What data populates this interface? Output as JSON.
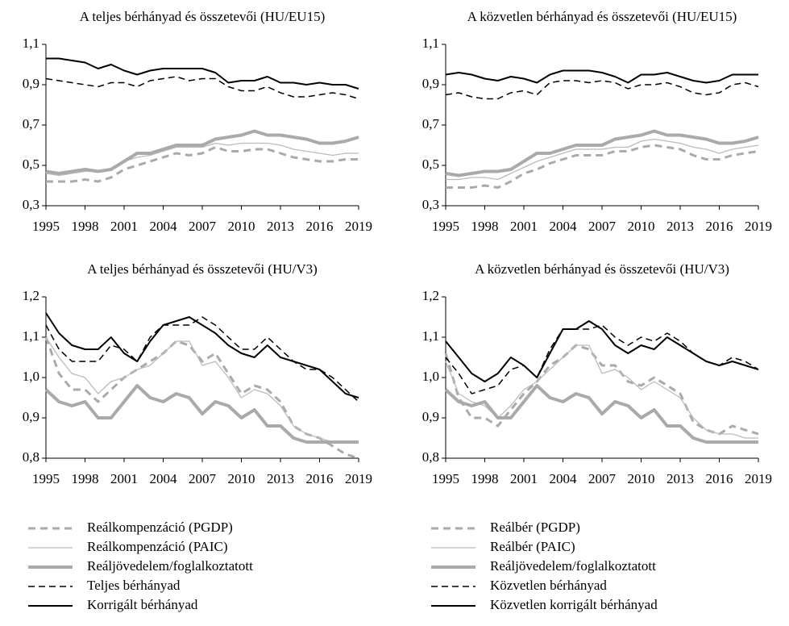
{
  "chart_data": [
    {
      "type": "line",
      "title": "A teljes bérhányad és összetevői (HU/EU15)",
      "x": [
        1995,
        1996,
        1997,
        1998,
        1999,
        2000,
        2001,
        2002,
        2003,
        2004,
        2005,
        2006,
        2007,
        2008,
        2009,
        2010,
        2011,
        2012,
        2013,
        2014,
        2015,
        2016,
        2017,
        2018,
        2019
      ],
      "xlim": [
        1995,
        2019
      ],
      "xticks": [
        1995,
        1998,
        2001,
        2004,
        2007,
        2010,
        2013,
        2016,
        2019
      ],
      "ylim": [
        0.3,
        1.1
      ],
      "yticks": [
        {
          "value": 0.3,
          "label": "0,3"
        },
        {
          "value": 0.5,
          "label": "0,5"
        },
        {
          "value": 0.7,
          "label": "0,7"
        },
        {
          "value": 0.9,
          "label": "0,9"
        },
        {
          "value": 1.1,
          "label": "1,1"
        }
      ],
      "series": [
        {
          "name": "Reálkompenzáció (PGDP)",
          "color": "#aaaaaa",
          "width": 3,
          "dash": "9 6",
          "values": [
            0.42,
            0.42,
            0.42,
            0.43,
            0.42,
            0.44,
            0.48,
            0.5,
            0.52,
            0.54,
            0.56,
            0.55,
            0.56,
            0.59,
            0.57,
            0.57,
            0.58,
            0.58,
            0.56,
            0.54,
            0.53,
            0.52,
            0.52,
            0.53,
            0.53
          ]
        },
        {
          "name": "Reálkompenzáció (PAIC)",
          "color": "#bbbbbb",
          "width": 1.3,
          "dash": "none",
          "values": [
            0.46,
            0.45,
            0.46,
            0.47,
            0.47,
            0.48,
            0.52,
            0.54,
            0.55,
            0.57,
            0.59,
            0.59,
            0.59,
            0.61,
            0.6,
            0.61,
            0.61,
            0.61,
            0.6,
            0.58,
            0.57,
            0.56,
            0.55,
            0.56,
            0.56
          ]
        },
        {
          "name": "Reáljövedelem/foglalkoztatott",
          "color": "#aaaaaa",
          "width": 4,
          "dash": "none",
          "values": [
            0.47,
            0.46,
            0.47,
            0.48,
            0.47,
            0.48,
            0.52,
            0.56,
            0.56,
            0.58,
            0.6,
            0.6,
            0.6,
            0.63,
            0.64,
            0.65,
            0.67,
            0.65,
            0.65,
            0.64,
            0.63,
            0.61,
            0.61,
            0.62,
            0.64
          ]
        },
        {
          "name": "Teljes bérhányad",
          "color": "#000000",
          "width": 1.5,
          "dash": "8 5",
          "values": [
            0.93,
            0.92,
            0.91,
            0.9,
            0.89,
            0.91,
            0.91,
            0.89,
            0.92,
            0.93,
            0.94,
            0.92,
            0.93,
            0.93,
            0.89,
            0.87,
            0.87,
            0.89,
            0.86,
            0.84,
            0.84,
            0.85,
            0.86,
            0.85,
            0.83
          ]
        },
        {
          "name": "Korrigált bérhányad",
          "color": "#000000",
          "width": 2,
          "dash": "none",
          "values": [
            1.03,
            1.03,
            1.02,
            1.01,
            0.98,
            1.0,
            0.97,
            0.95,
            0.97,
            0.98,
            0.98,
            0.98,
            0.98,
            0.96,
            0.91,
            0.92,
            0.92,
            0.94,
            0.91,
            0.91,
            0.9,
            0.91,
            0.9,
            0.9,
            0.88
          ]
        }
      ]
    },
    {
      "type": "line",
      "title": "A közvetlen bérhányad és összetevői (HU/EU15)",
      "x": [
        1995,
        1996,
        1997,
        1998,
        1999,
        2000,
        2001,
        2002,
        2003,
        2004,
        2005,
        2006,
        2007,
        2008,
        2009,
        2010,
        2011,
        2012,
        2013,
        2014,
        2015,
        2016,
        2017,
        2018,
        2019
      ],
      "xlim": [
        1995,
        2019
      ],
      "xticks": [
        1995,
        1998,
        2001,
        2004,
        2007,
        2010,
        2013,
        2016,
        2019
      ],
      "ylim": [
        0.3,
        1.1
      ],
      "yticks": [
        {
          "value": 0.3,
          "label": "0,3"
        },
        {
          "value": 0.5,
          "label": "0,5"
        },
        {
          "value": 0.7,
          "label": "0,7"
        },
        {
          "value": 0.9,
          "label": "0,9"
        },
        {
          "value": 1.1,
          "label": "1,1"
        }
      ],
      "series": [
        {
          "name": "Reálbér (PGDP)",
          "color": "#aaaaaa",
          "width": 3,
          "dash": "9 6",
          "values": [
            0.39,
            0.39,
            0.39,
            0.4,
            0.39,
            0.42,
            0.46,
            0.48,
            0.51,
            0.53,
            0.55,
            0.55,
            0.55,
            0.57,
            0.57,
            0.59,
            0.6,
            0.59,
            0.58,
            0.55,
            0.53,
            0.53,
            0.55,
            0.56,
            0.57
          ]
        },
        {
          "name": "Reálbér (PAIC)",
          "color": "#bbbbbb",
          "width": 1.3,
          "dash": "none",
          "values": [
            0.43,
            0.43,
            0.44,
            0.44,
            0.43,
            0.46,
            0.49,
            0.52,
            0.54,
            0.56,
            0.58,
            0.58,
            0.58,
            0.59,
            0.59,
            0.62,
            0.63,
            0.62,
            0.61,
            0.59,
            0.58,
            0.56,
            0.58,
            0.59,
            0.6
          ]
        },
        {
          "name": "Reáljövedelem/foglalkoztatott",
          "color": "#aaaaaa",
          "width": 4,
          "dash": "none",
          "values": [
            0.46,
            0.45,
            0.46,
            0.47,
            0.47,
            0.48,
            0.52,
            0.56,
            0.56,
            0.58,
            0.6,
            0.6,
            0.6,
            0.63,
            0.64,
            0.65,
            0.67,
            0.65,
            0.65,
            0.64,
            0.63,
            0.61,
            0.61,
            0.62,
            0.64
          ]
        },
        {
          "name": "Közvetlen bérhányad",
          "color": "#000000",
          "width": 1.5,
          "dash": "8 5",
          "values": [
            0.85,
            0.86,
            0.84,
            0.83,
            0.83,
            0.86,
            0.87,
            0.85,
            0.91,
            0.92,
            0.92,
            0.91,
            0.92,
            0.91,
            0.88,
            0.9,
            0.9,
            0.91,
            0.89,
            0.86,
            0.85,
            0.86,
            0.9,
            0.91,
            0.89
          ]
        },
        {
          "name": "Közvetlen korrigált bérhányad",
          "color": "#000000",
          "width": 2,
          "dash": "none",
          "values": [
            0.95,
            0.96,
            0.95,
            0.93,
            0.92,
            0.94,
            0.93,
            0.91,
            0.95,
            0.97,
            0.97,
            0.97,
            0.96,
            0.94,
            0.91,
            0.95,
            0.95,
            0.96,
            0.94,
            0.92,
            0.91,
            0.92,
            0.95,
            0.95,
            0.95
          ]
        }
      ]
    },
    {
      "type": "line",
      "title": "A teljes bérhányad és összetevői (HU/V3)",
      "x": [
        1995,
        1996,
        1997,
        1998,
        1999,
        2000,
        2001,
        2002,
        2003,
        2004,
        2005,
        2006,
        2007,
        2008,
        2009,
        2010,
        2011,
        2012,
        2013,
        2014,
        2015,
        2016,
        2017,
        2018,
        2019
      ],
      "xlim": [
        1995,
        2019
      ],
      "xticks": [
        1995,
        1998,
        2001,
        2004,
        2007,
        2010,
        2013,
        2016,
        2019
      ],
      "ylim": [
        0.8,
        1.2
      ],
      "yticks": [
        {
          "value": 0.8,
          "label": "0,8"
        },
        {
          "value": 0.9,
          "label": "0,9"
        },
        {
          "value": 1.0,
          "label": "1,0"
        },
        {
          "value": 1.1,
          "label": "1,1"
        },
        {
          "value": 1.2,
          "label": "1,2"
        }
      ],
      "series": [
        {
          "color": "#aaaaaa",
          "width": 3,
          "dash": "9 6",
          "values": [
            1.1,
            1.01,
            0.97,
            0.97,
            0.94,
            0.97,
            1.0,
            1.02,
            1.04,
            1.06,
            1.09,
            1.08,
            1.04,
            1.06,
            1.01,
            0.96,
            0.98,
            0.97,
            0.94,
            0.88,
            0.86,
            0.85,
            0.83,
            0.81,
            0.8
          ]
        },
        {
          "color": "#bbbbbb",
          "width": 1.3,
          "dash": "none",
          "values": [
            1.1,
            1.05,
            1.01,
            1.0,
            0.96,
            0.99,
            1.0,
            1.02,
            1.03,
            1.06,
            1.09,
            1.09,
            1.03,
            1.04,
            1.0,
            0.95,
            0.97,
            0.96,
            0.93,
            0.88,
            0.86,
            0.85,
            0.84,
            0.84,
            0.84
          ]
        },
        {
          "color": "#aaaaaa",
          "width": 4,
          "dash": "none",
          "values": [
            0.97,
            0.94,
            0.93,
            0.94,
            0.9,
            0.9,
            0.94,
            0.98,
            0.95,
            0.94,
            0.96,
            0.95,
            0.91,
            0.94,
            0.93,
            0.9,
            0.92,
            0.88,
            0.88,
            0.85,
            0.84,
            0.84,
            0.84,
            0.84,
            0.84
          ]
        },
        {
          "color": "#000000",
          "width": 1.5,
          "dash": "8 5",
          "values": [
            1.13,
            1.07,
            1.04,
            1.04,
            1.04,
            1.08,
            1.07,
            1.04,
            1.1,
            1.13,
            1.13,
            1.13,
            1.15,
            1.13,
            1.1,
            1.07,
            1.07,
            1.1,
            1.07,
            1.04,
            1.02,
            1.02,
            1.0,
            0.97,
            0.94
          ]
        },
        {
          "color": "#000000",
          "width": 2,
          "dash": "none",
          "values": [
            1.16,
            1.11,
            1.08,
            1.07,
            1.07,
            1.1,
            1.06,
            1.04,
            1.09,
            1.13,
            1.14,
            1.15,
            1.13,
            1.11,
            1.08,
            1.06,
            1.05,
            1.08,
            1.05,
            1.04,
            1.03,
            1.02,
            0.99,
            0.96,
            0.95
          ]
        }
      ]
    },
    {
      "type": "line",
      "title": "A közvetlen bérhányad és összetevői (HU/V3)",
      "x": [
        1995,
        1996,
        1997,
        1998,
        1999,
        2000,
        2001,
        2002,
        2003,
        2004,
        2005,
        2006,
        2007,
        2008,
        2009,
        2010,
        2011,
        2012,
        2013,
        2014,
        2015,
        2016,
        2017,
        2018,
        2019
      ],
      "xlim": [
        1995,
        2019
      ],
      "xticks": [
        1995,
        1998,
        2001,
        2004,
        2007,
        2010,
        2013,
        2016,
        2019
      ],
      "ylim": [
        0.8,
        1.2
      ],
      "yticks": [
        {
          "value": 0.8,
          "label": "0,8"
        },
        {
          "value": 0.9,
          "label": "0,9"
        },
        {
          "value": 1.0,
          "label": "1,0"
        },
        {
          "value": 1.1,
          "label": "1,1"
        },
        {
          "value": 1.2,
          "label": "1,2"
        }
      ],
      "series": [
        {
          "color": "#aaaaaa",
          "width": 3,
          "dash": "9 6",
          "values": [
            1.06,
            0.95,
            0.9,
            0.9,
            0.88,
            0.92,
            0.96,
            0.99,
            1.03,
            1.05,
            1.08,
            1.07,
            1.03,
            1.03,
            0.99,
            0.98,
            1.0,
            0.98,
            0.96,
            0.89,
            0.87,
            0.86,
            0.88,
            0.87,
            0.86
          ]
        },
        {
          "color": "#bbbbbb",
          "width": 1.3,
          "dash": "none",
          "values": [
            1.04,
            0.96,
            0.94,
            0.93,
            0.9,
            0.93,
            0.97,
            0.99,
            1.02,
            1.05,
            1.08,
            1.08,
            1.01,
            1.02,
            1.0,
            0.97,
            0.99,
            0.97,
            0.95,
            0.9,
            0.87,
            0.86,
            0.86,
            0.85,
            0.85
          ]
        },
        {
          "color": "#aaaaaa",
          "width": 4,
          "dash": "none",
          "values": [
            0.97,
            0.94,
            0.93,
            0.94,
            0.9,
            0.9,
            0.94,
            0.98,
            0.95,
            0.94,
            0.96,
            0.95,
            0.91,
            0.94,
            0.93,
            0.9,
            0.92,
            0.88,
            0.88,
            0.85,
            0.84,
            0.84,
            0.84,
            0.84,
            0.84
          ]
        },
        {
          "color": "#000000",
          "width": 1.5,
          "dash": "8 5",
          "values": [
            1.05,
            1.01,
            0.96,
            0.97,
            0.98,
            1.02,
            1.03,
            1.0,
            1.07,
            1.12,
            1.12,
            1.12,
            1.13,
            1.1,
            1.08,
            1.1,
            1.09,
            1.11,
            1.09,
            1.06,
            1.04,
            1.03,
            1.05,
            1.04,
            1.02
          ]
        },
        {
          "color": "#000000",
          "width": 2,
          "dash": "none",
          "values": [
            1.09,
            1.05,
            1.01,
            0.99,
            1.01,
            1.05,
            1.03,
            1.0,
            1.06,
            1.12,
            1.12,
            1.14,
            1.12,
            1.08,
            1.06,
            1.08,
            1.07,
            1.1,
            1.08,
            1.06,
            1.04,
            1.03,
            1.04,
            1.03,
            1.02
          ]
        }
      ]
    }
  ]
}
